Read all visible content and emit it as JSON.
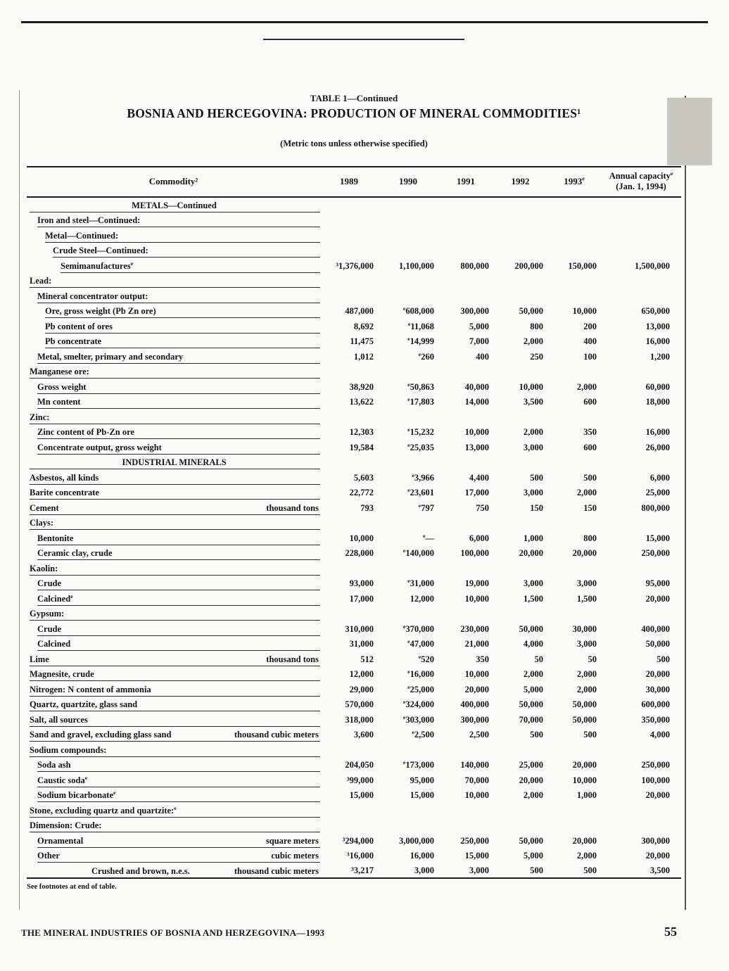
{
  "page": {
    "table_label": "TABLE 1—Continued",
    "title": "BOSNIA AND HERCEGOVINA: PRODUCTION OF MINERAL COMMODITIES¹",
    "subtitle": "(Metric tons unless otherwise specified)",
    "footnote": "See footnotes at end of table.",
    "footer": "THE MINERAL INDUSTRIES OF BOSNIA AND HERZEGOVINA—1993",
    "page_number": "55"
  },
  "colors": {
    "paper": "#fcfbf8",
    "ink": "#141414",
    "rule": "#1c1c1c"
  },
  "table": {
    "header": {
      "commodity": "Commodity²",
      "years": [
        "1989",
        "1990",
        "1991",
        "1992",
        "1993ᵉ"
      ],
      "capacity_line1": "Annual capacityᵉ",
      "capacity_line2": "(Jan. 1, 1994)"
    },
    "rows": [
      {
        "type": "section",
        "label": "METALS—Continued"
      },
      {
        "type": "row",
        "indent": 1,
        "label": "Iron and steel—Continued:"
      },
      {
        "type": "row",
        "indent": 2,
        "label": "Metal—Continued:"
      },
      {
        "type": "row",
        "indent": 3,
        "label": "Crude Steel—Continued:"
      },
      {
        "type": "row",
        "indent": 4,
        "label": "Semimanufacturesᵉ",
        "values": [
          "³1,376,000",
          "1,100,000",
          "800,000",
          "200,000",
          "150,000",
          "1,500,000"
        ]
      },
      {
        "type": "row",
        "indent": 0,
        "label": "Lead:"
      },
      {
        "type": "row",
        "indent": 1,
        "label": "Mineral concentrator output:"
      },
      {
        "type": "row",
        "indent": 2,
        "label": "Ore, gross weight (Pb Zn ore)",
        "values": [
          "487,000",
          "ᵉ608,000",
          "300,000",
          "50,000",
          "10,000",
          "650,000"
        ]
      },
      {
        "type": "row",
        "indent": 2,
        "label": "Pb content of ores",
        "values": [
          "8,692",
          "ᵉ11,068",
          "5,000",
          "800",
          "200",
          "13,000"
        ]
      },
      {
        "type": "row",
        "indent": 2,
        "label": "Pb concentrate",
        "values": [
          "11,475",
          "ᵉ14,999",
          "7,000",
          "2,000",
          "400",
          "16,000"
        ]
      },
      {
        "type": "row",
        "indent": 1,
        "label": "Metal, smelter, primary and secondary",
        "values": [
          "1,012",
          "ᵉ260",
          "400",
          "250",
          "100",
          "1,200"
        ]
      },
      {
        "type": "row",
        "indent": 0,
        "label": "Manganese ore:"
      },
      {
        "type": "row",
        "indent": 1,
        "label": "Gross weight",
        "values": [
          "38,920",
          "ᵉ50,863",
          "40,000",
          "10,000",
          "2,000",
          "60,000"
        ]
      },
      {
        "type": "row",
        "indent": 1,
        "label": "Mn content",
        "values": [
          "13,622",
          "ᵉ17,803",
          "14,000",
          "3,500",
          "600",
          "18,000"
        ]
      },
      {
        "type": "row",
        "indent": 0,
        "label": "Zinc:"
      },
      {
        "type": "row",
        "indent": 1,
        "label": "Zinc content of Pb-Zn ore",
        "values": [
          "12,303",
          "ᵉ15,232",
          "10,000",
          "2,000",
          "350",
          "16,000"
        ]
      },
      {
        "type": "row",
        "indent": 1,
        "label": "Concentrate output, gross weight",
        "values": [
          "19,584",
          "ᵉ25,035",
          "13,000",
          "3,000",
          "600",
          "26,000"
        ]
      },
      {
        "type": "section",
        "label": "INDUSTRIAL MINERALS"
      },
      {
        "type": "row",
        "indent": 0,
        "label": "Asbestos, all kinds",
        "values": [
          "5,603",
          "ᵉ3,966",
          "4,400",
          "500",
          "500",
          "6,000"
        ]
      },
      {
        "type": "row",
        "indent": 0,
        "label": "Barite concentrate",
        "values": [
          "22,772",
          "ᵉ23,601",
          "17,000",
          "3,000",
          "2,000",
          "25,000"
        ]
      },
      {
        "type": "row",
        "indent": 0,
        "label": "Cement",
        "unit": "thousand tons",
        "values": [
          "793",
          "ᵉ797",
          "750",
          "150",
          "150",
          "800,000"
        ]
      },
      {
        "type": "row",
        "indent": 0,
        "label": "Clays:"
      },
      {
        "type": "row",
        "indent": 1,
        "label": "Bentonite",
        "values": [
          "10,000",
          "ᵉ—",
          "6,000",
          "1,000",
          "800",
          "15,000"
        ]
      },
      {
        "type": "row",
        "indent": 1,
        "label": "Ceramic clay, crude",
        "values": [
          "228,000",
          "ᵉ140,000",
          "100,000",
          "20,000",
          "20,000",
          "250,000"
        ]
      },
      {
        "type": "row",
        "indent": 0,
        "label": "Kaolin:"
      },
      {
        "type": "row",
        "indent": 1,
        "label": "Crude",
        "values": [
          "93,000",
          "ᵉ31,000",
          "19,000",
          "3,000",
          "3,000",
          "95,000"
        ]
      },
      {
        "type": "row",
        "indent": 1,
        "label": "Calcinedᵉ",
        "values": [
          "17,000",
          "12,000",
          "10,000",
          "1,500",
          "1,500",
          "20,000"
        ]
      },
      {
        "type": "row",
        "indent": 0,
        "label": "Gypsum:"
      },
      {
        "type": "row",
        "indent": 1,
        "label": "Crude",
        "values": [
          "310,000",
          "ᵉ370,000",
          "230,000",
          "50,000",
          "30,000",
          "400,000"
        ]
      },
      {
        "type": "row",
        "indent": 1,
        "label": "Calcined",
        "values": [
          "31,000",
          "ᵉ47,000",
          "21,000",
          "4,000",
          "3,000",
          "50,000"
        ]
      },
      {
        "type": "row",
        "indent": 0,
        "label": "Lime",
        "unit": "thousand tons",
        "values": [
          "512",
          "ᵉ520",
          "350",
          "50",
          "50",
          "500"
        ]
      },
      {
        "type": "row",
        "indent": 0,
        "label": "Magnesite, crude",
        "values": [
          "12,000",
          "ᵉ16,000",
          "10,000",
          "2,000",
          "2,000",
          "20,000"
        ]
      },
      {
        "type": "row",
        "indent": 0,
        "label": "Nitrogen: N content of ammonia",
        "values": [
          "29,000",
          "ᵉ25,000",
          "20,000",
          "5,000",
          "2,000",
          "30,000"
        ]
      },
      {
        "type": "row",
        "indent": 0,
        "label": "Quartz, quartzite, glass sand",
        "values": [
          "570,000",
          "ᵉ324,000",
          "400,000",
          "50,000",
          "50,000",
          "600,000"
        ]
      },
      {
        "type": "row",
        "indent": 0,
        "label": "Salt, all sources",
        "values": [
          "318,000",
          "ᵉ303,000",
          "300,000",
          "70,000",
          "50,000",
          "350,000"
        ]
      },
      {
        "type": "row",
        "indent": 0,
        "label": "Sand and gravel, excluding glass sand",
        "unit": "thousand cubic meters",
        "values": [
          "3,600",
          "ᵉ2,500",
          "2,500",
          "500",
          "500",
          "4,000"
        ]
      },
      {
        "type": "row",
        "indent": 0,
        "label": "Sodium compounds:"
      },
      {
        "type": "row",
        "indent": 1,
        "label": "Soda ash",
        "values": [
          "204,050",
          "ᵉ173,000",
          "140,000",
          "25,000",
          "20,000",
          "250,000"
        ]
      },
      {
        "type": "row",
        "indent": 1,
        "label": "Caustic sodaᵉ",
        "values": [
          "³99,000",
          "95,000",
          "70,000",
          "20,000",
          "10,000",
          "100,000"
        ]
      },
      {
        "type": "row",
        "indent": 1,
        "label": "Sodium bicarbonateᵉ",
        "values": [
          "15,000",
          "15,000",
          "10,000",
          "2,000",
          "1,000",
          "20,000"
        ]
      },
      {
        "type": "row",
        "indent": 0,
        "label": "Stone, excluding quartz and quartzite:ᵉ"
      },
      {
        "type": "row",
        "indent": 0,
        "label": "Dimension: Crude:"
      },
      {
        "type": "row",
        "indent": 1,
        "label": "Ornamental",
        "unit": "square meters",
        "values": [
          "³294,000",
          "3,000,000",
          "250,000",
          "50,000",
          "20,000",
          "300,000"
        ]
      },
      {
        "type": "row",
        "indent": 1,
        "label": "Other",
        "unit": "cubic meters",
        "values": [
          "³16,000",
          "16,000",
          "15,000",
          "5,000",
          "2,000",
          "20,000"
        ]
      },
      {
        "type": "row",
        "indent": 8,
        "label": "Crushed and brown, n.e.s.",
        "unit": "thousand cubic meters",
        "values": [
          "³3,217",
          "3,000",
          "3,000",
          "500",
          "500",
          "3,500"
        ]
      }
    ]
  }
}
